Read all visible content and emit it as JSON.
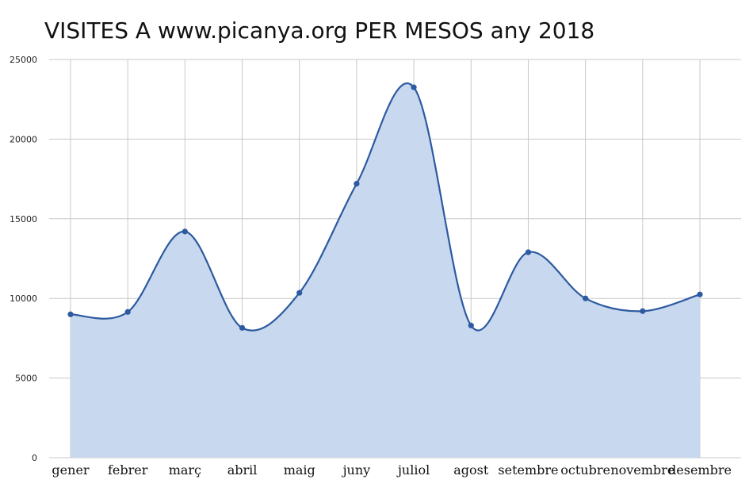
{
  "chart_data": {
    "type": "area",
    "title": "VISITES A www.picanya.org PER MESOS any 2018",
    "categories": [
      "gener",
      "febrer",
      "març",
      "abril",
      "maig",
      "juny",
      "juliol",
      "agost",
      "setembre",
      "octubre",
      "novembre",
      "desembre"
    ],
    "values": [
      9000,
      9150,
      14200,
      8150,
      10350,
      17200,
      23250,
      8300,
      12900,
      10000,
      9200,
      10250
    ],
    "ylim": [
      0,
      25000
    ],
    "yticks": [
      0,
      5000,
      10000,
      15000,
      20000,
      25000
    ],
    "grid": true,
    "smooth": true,
    "markers": true,
    "colors": {
      "line": "#2d5aa0",
      "fill": "#c8d8ee",
      "grid": "#c8c8c8"
    }
  }
}
